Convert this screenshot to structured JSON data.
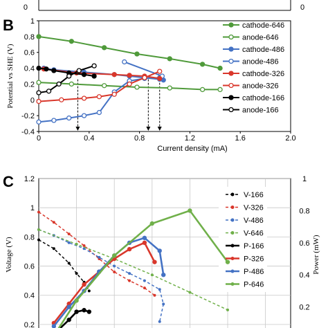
{
  "panels": {
    "b_letter": "B",
    "c_letter": "C",
    "top_strip": {
      "left_tick": "0",
      "right_tick": "0"
    }
  },
  "chart_data": [
    {
      "panel": "B",
      "type": "line",
      "xlabel": "Current density (mA)",
      "ylabel": "Potential vs SHE (V)",
      "xlim": [
        0,
        2.0
      ],
      "ylim": [
        -0.4,
        1.0
      ],
      "xticks": [
        "0",
        "0.4",
        "0.8",
        "1.2",
        "1.6",
        "2.0"
      ],
      "yticks": [
        "-0.4",
        "-0.2",
        "0",
        "0.2",
        "0.4",
        "0.6",
        "0.8",
        "1"
      ],
      "grid": false,
      "legend": "right",
      "series": [
        {
          "name": "cathode-646",
          "color": "#4f9a3a",
          "filled": true,
          "x": [
            0,
            0.26,
            0.52,
            0.78,
            1.04,
            1.3,
            1.44
          ],
          "y": [
            0.8,
            0.74,
            0.66,
            0.58,
            0.52,
            0.45,
            0.4
          ]
        },
        {
          "name": "anode-646",
          "color": "#4f9a3a",
          "filled": false,
          "x": [
            0,
            0.26,
            0.52,
            0.78,
            1.04,
            1.3,
            1.44
          ],
          "y": [
            0.22,
            0.2,
            0.18,
            0.16,
            0.15,
            0.13,
            0.13
          ]
        },
        {
          "name": "cathode-486",
          "color": "#4472c4",
          "filled": true,
          "x": [
            0.04,
            0.12,
            0.36,
            0.6,
            0.72,
            0.96,
            0.99
          ],
          "y": [
            0.4,
            0.38,
            0.35,
            0.32,
            0.3,
            0.26,
            0.25
          ]
        },
        {
          "name": "anode-486",
          "color": "#4472c4",
          "filled": false,
          "x": [
            0,
            0.12,
            0.24,
            0.36,
            0.48,
            0.6,
            0.72,
            0.84,
            0.96,
            0.98,
            0.68
          ],
          "y": [
            -0.28,
            -0.26,
            -0.23,
            -0.2,
            -0.16,
            0.1,
            0.24,
            0.27,
            0.28,
            0.3,
            0.48
          ]
        },
        {
          "name": "cathode-326",
          "color": "#d9372b",
          "filled": true,
          "x": [
            0.04,
            0.3,
            0.6,
            0.72,
            0.84,
            0.96
          ],
          "y": [
            0.39,
            0.34,
            0.32,
            0.31,
            0.3,
            0.27
          ]
        },
        {
          "name": "anode-326",
          "color": "#d9372b",
          "filled": false,
          "x": [
            0,
            0.18,
            0.36,
            0.48,
            0.6,
            0.72,
            0.84,
            0.96
          ],
          "y": [
            -0.02,
            0.0,
            0.02,
            0.04,
            0.07,
            0.2,
            0.28,
            0.36
          ]
        },
        {
          "name": "cathode-166",
          "color": "#000000",
          "filled": true,
          "x": [
            0,
            0.06,
            0.12,
            0.24,
            0.36,
            0.44
          ],
          "y": [
            0.4,
            0.39,
            0.37,
            0.34,
            0.32,
            0.3
          ]
        },
        {
          "name": "anode-166",
          "color": "#000000",
          "filled": false,
          "x": [
            0,
            0.08,
            0.16,
            0.24,
            0.32,
            0.44
          ],
          "y": [
            0.09,
            0.11,
            0.2,
            0.3,
            0.37,
            0.43
          ]
        }
      ],
      "annotations": {
        "dashed_arrows_at_x": [
          0.31,
          0.87,
          0.96
        ]
      }
    },
    {
      "panel": "C",
      "type": "line",
      "ylabel": "Voltage (V)",
      "y2label": "Power (mW)",
      "ylim": [
        0.2,
        1.2
      ],
      "y2lim": [
        0.1,
        1.0
      ],
      "yticks": [
        "0.2",
        "0.4",
        "0.6",
        "0.8",
        "1",
        "1.2"
      ],
      "y2ticks": [
        "0.2",
        "0.4",
        "0.6",
        "0.8",
        "1"
      ],
      "grid": true,
      "legend": "right",
      "series": [
        {
          "name": "V-166",
          "color": "#000000",
          "style": "dashed",
          "axis": "left",
          "x": [
            0,
            0.12,
            0.24,
            0.3,
            0.36,
            0.4
          ],
          "y": [
            0.78,
            0.72,
            0.62,
            0.55,
            0.49,
            0.43
          ]
        },
        {
          "name": "V-326",
          "color": "#d9372b",
          "style": "dashed",
          "axis": "left",
          "x": [
            0,
            0.12,
            0.24,
            0.36,
            0.48,
            0.6,
            0.72,
            0.84,
            0.92
          ],
          "y": [
            0.97,
            0.9,
            0.82,
            0.74,
            0.65,
            0.56,
            0.5,
            0.45,
            0.4
          ]
        },
        {
          "name": "V-486",
          "color": "#4472c4",
          "style": "dashed",
          "axis": "left",
          "x": [
            0,
            0.12,
            0.24,
            0.36,
            0.48,
            0.6,
            0.72,
            0.84,
            0.96,
            0.99,
            0.96
          ],
          "y": [
            0.85,
            0.81,
            0.76,
            0.72,
            0.66,
            0.6,
            0.55,
            0.5,
            0.44,
            0.34,
            0.22
          ]
        },
        {
          "name": "V-646",
          "color": "#70b04a",
          "style": "dashed",
          "axis": "left",
          "x": [
            0,
            0.3,
            0.6,
            0.9,
            1.2,
            1.5
          ],
          "y": [
            0.85,
            0.75,
            0.65,
            0.54,
            0.42,
            0.3
          ]
        },
        {
          "name": "P-166",
          "color": "#000000",
          "style": "solid",
          "axis": "right",
          "x": [
            0.12,
            0.24,
            0.3,
            0.36,
            0.4
          ],
          "y": [
            0.03,
            0.12,
            0.17,
            0.18,
            0.17
          ]
        },
        {
          "name": "P-326",
          "color": "#d9372b",
          "style": "solid",
          "axis": "right",
          "x": [
            0.12,
            0.24,
            0.36,
            0.48,
            0.6,
            0.72,
            0.84,
            0.92
          ],
          "y": [
            0.1,
            0.22,
            0.34,
            0.42,
            0.5,
            0.56,
            0.6,
            0.48
          ]
        },
        {
          "name": "P-486",
          "color": "#4472c4",
          "style": "solid",
          "axis": "right",
          "x": [
            0.12,
            0.24,
            0.36,
            0.48,
            0.6,
            0.72,
            0.84,
            0.96,
            0.99
          ],
          "y": [
            0.08,
            0.2,
            0.3,
            0.42,
            0.52,
            0.6,
            0.63,
            0.55,
            0.4
          ]
        },
        {
          "name": "P-646",
          "color": "#70b04a",
          "style": "solid",
          "axis": "right",
          "x": [
            0.12,
            0.3,
            0.6,
            0.9,
            1.2,
            1.5
          ],
          "y": [
            0.02,
            0.24,
            0.52,
            0.72,
            0.8,
            0.48
          ]
        }
      ]
    }
  ]
}
